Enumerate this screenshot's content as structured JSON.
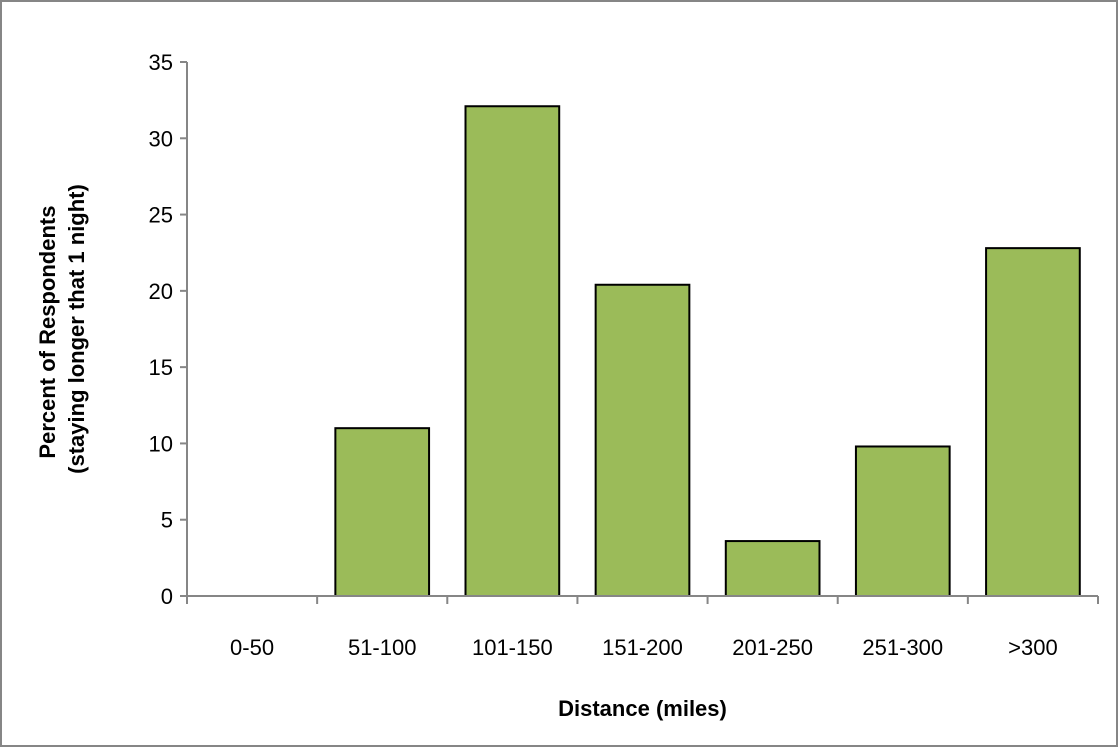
{
  "chart_data": {
    "type": "bar",
    "title": "",
    "xlabel": "Distance (miles)",
    "ylabel_lines": [
      "Percent of Respondents",
      "(staying longer that 1 night)"
    ],
    "categories": [
      "0-50",
      "51-100",
      "101-150",
      "151-200",
      "201-250",
      "251-300",
      ">300"
    ],
    "values": [
      0,
      11.0,
      32.1,
      20.4,
      3.6,
      9.8,
      22.8
    ],
    "ylim": [
      0,
      35
    ],
    "yticks": [
      0,
      5,
      10,
      15,
      20,
      25,
      30,
      35
    ],
    "grid": false,
    "legend": "none",
    "bar_color": "#9BBB59",
    "bar_edge_color": "#000000",
    "frame_color": "#868686"
  }
}
